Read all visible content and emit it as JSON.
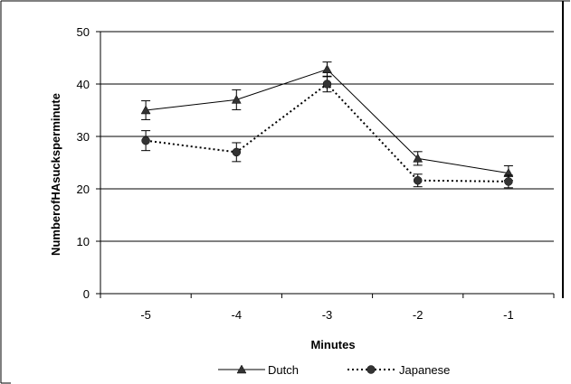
{
  "chart_data": {
    "type": "line",
    "title": "",
    "xlabel": "Minutes",
    "ylabel": "NumberofHAsucksperminute",
    "categories": [
      "-5",
      "-4",
      "-3",
      "-2",
      "-1"
    ],
    "ylim": [
      0,
      50
    ],
    "yticks": [
      "0",
      "10",
      "20",
      "30",
      "40",
      "50"
    ],
    "grid": true,
    "legend_position": "bottom",
    "series": [
      {
        "name": "Dutch",
        "values": [
          35.0,
          37.0,
          42.8,
          25.8,
          23.0
        ],
        "errors": [
          1.8,
          1.9,
          1.4,
          1.3,
          1.4
        ],
        "marker": "triangle",
        "line_style": "solid",
        "color": "#000000"
      },
      {
        "name": "Japanese",
        "values": [
          29.2,
          27.0,
          40.0,
          21.6,
          21.4
        ],
        "errors": [
          1.9,
          1.8,
          1.5,
          1.2,
          1.2
        ],
        "marker": "circle",
        "line_style": "dotted",
        "color": "#000000"
      }
    ]
  }
}
